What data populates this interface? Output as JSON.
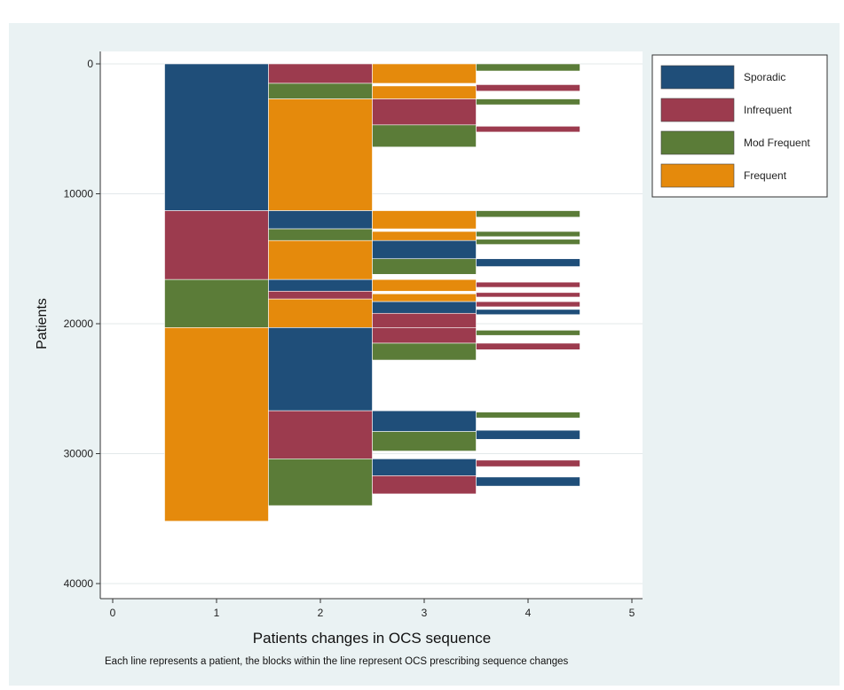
{
  "chart_data": {
    "type": "bar",
    "orientation": "horizontal-stacked-sequence",
    "title": "",
    "xlabel": "Patients changes in OCS sequence",
    "ylabel": "Patients",
    "xlim": [
      0,
      5
    ],
    "ylim": [
      0,
      40000
    ],
    "y_inverted": true,
    "xticks": [
      "0",
      "1",
      "2",
      "3",
      "4",
      "5"
    ],
    "yticks": [
      "0",
      "10000",
      "20000",
      "30000",
      "40000"
    ],
    "grid": true,
    "legend_position": "top-right",
    "colors": {
      "Sporadic": "#1f4e79",
      "Infrequent": "#9c3b4e",
      "Mod Frequent": "#5b7c38",
      "Frequent": "#e58a0c"
    },
    "legend": [
      "Sporadic",
      "Infrequent",
      "Mod Frequent",
      "Frequent"
    ],
    "blocks": [
      {
        "step": 1,
        "category": "Sporadic",
        "y0": 0,
        "y1": 11300
      },
      {
        "step": 1,
        "category": "Infrequent",
        "y0": 11300,
        "y1": 16600
      },
      {
        "step": 1,
        "category": "Mod Frequent",
        "y0": 16600,
        "y1": 20300
      },
      {
        "step": 1,
        "category": "Frequent",
        "y0": 20300,
        "y1": 35200
      },
      {
        "step": 2,
        "category": "Infrequent",
        "y0": 0,
        "y1": 1500
      },
      {
        "step": 2,
        "category": "Mod Frequent",
        "y0": 1500,
        "y1": 2700
      },
      {
        "step": 2,
        "category": "Frequent",
        "y0": 2700,
        "y1": 11300
      },
      {
        "step": 2,
        "category": "Sporadic",
        "y0": 11300,
        "y1": 12700
      },
      {
        "step": 2,
        "category": "Mod Frequent",
        "y0": 12700,
        "y1": 13600
      },
      {
        "step": 2,
        "category": "Frequent",
        "y0": 13600,
        "y1": 16600
      },
      {
        "step": 2,
        "category": "Sporadic",
        "y0": 16600,
        "y1": 17500
      },
      {
        "step": 2,
        "category": "Infrequent",
        "y0": 17500,
        "y1": 18100
      },
      {
        "step": 2,
        "category": "Frequent",
        "y0": 18100,
        "y1": 20300
      },
      {
        "step": 2,
        "category": "Sporadic",
        "y0": 20300,
        "y1": 26700
      },
      {
        "step": 2,
        "category": "Infrequent",
        "y0": 26700,
        "y1": 30400
      },
      {
        "step": 2,
        "category": "Mod Frequent",
        "y0": 30400,
        "y1": 34000
      },
      {
        "step": 3,
        "category": "Frequent",
        "y0": 0,
        "y1": 1500
      },
      {
        "step": 3,
        "category": "Frequent",
        "y0": 1700,
        "y1": 2700
      },
      {
        "step": 3,
        "category": "Infrequent",
        "y0": 2700,
        "y1": 4700
      },
      {
        "step": 3,
        "category": "Mod Frequent",
        "y0": 4700,
        "y1": 6400
      },
      {
        "step": 3,
        "category": "Frequent",
        "y0": 11300,
        "y1": 12700
      },
      {
        "step": 3,
        "category": "Frequent",
        "y0": 12900,
        "y1": 13600
      },
      {
        "step": 3,
        "category": "Sporadic",
        "y0": 13600,
        "y1": 15000
      },
      {
        "step": 3,
        "category": "Mod Frequent",
        "y0": 15000,
        "y1": 16200
      },
      {
        "step": 3,
        "category": "Frequent",
        "y0": 16600,
        "y1": 17500
      },
      {
        "step": 3,
        "category": "Frequent",
        "y0": 17700,
        "y1": 18300
      },
      {
        "step": 3,
        "category": "Sporadic",
        "y0": 18300,
        "y1": 19200
      },
      {
        "step": 3,
        "category": "Infrequent",
        "y0": 19200,
        "y1": 20300
      },
      {
        "step": 3,
        "category": "Infrequent",
        "y0": 20300,
        "y1": 21500
      },
      {
        "step": 3,
        "category": "Mod Frequent",
        "y0": 21500,
        "y1": 22800
      },
      {
        "step": 3,
        "category": "Sporadic",
        "y0": 26700,
        "y1": 28300
      },
      {
        "step": 3,
        "category": "Mod Frequent",
        "y0": 28300,
        "y1": 29800
      },
      {
        "step": 3,
        "category": "Sporadic",
        "y0": 30400,
        "y1": 31700
      },
      {
        "step": 3,
        "category": "Infrequent",
        "y0": 31700,
        "y1": 33100
      },
      {
        "step": 4,
        "category": "Mod Frequent",
        "y0": 0,
        "y1": 550
      },
      {
        "step": 4,
        "category": "Infrequent",
        "y0": 1600,
        "y1": 2100
      },
      {
        "step": 4,
        "category": "Mod Frequent",
        "y0": 2700,
        "y1": 3150
      },
      {
        "step": 4,
        "category": "Infrequent",
        "y0": 4800,
        "y1": 5250
      },
      {
        "step": 4,
        "category": "Mod Frequent",
        "y0": 11300,
        "y1": 11800
      },
      {
        "step": 4,
        "category": "Mod Frequent",
        "y0": 12900,
        "y1": 13300
      },
      {
        "step": 4,
        "category": "Mod Frequent",
        "y0": 13500,
        "y1": 13900
      },
      {
        "step": 4,
        "category": "Sporadic",
        "y0": 15000,
        "y1": 15600
      },
      {
        "step": 4,
        "category": "Infrequent",
        "y0": 16800,
        "y1": 17200
      },
      {
        "step": 4,
        "category": "Infrequent",
        "y0": 17600,
        "y1": 17950
      },
      {
        "step": 4,
        "category": "Infrequent",
        "y0": 18300,
        "y1": 18700
      },
      {
        "step": 4,
        "category": "Sporadic",
        "y0": 18900,
        "y1": 19300
      },
      {
        "step": 4,
        "category": "Mod Frequent",
        "y0": 20500,
        "y1": 20900
      },
      {
        "step": 4,
        "category": "Infrequent",
        "y0": 21500,
        "y1": 22000
      },
      {
        "step": 4,
        "category": "Mod Frequent",
        "y0": 26800,
        "y1": 27250
      },
      {
        "step": 4,
        "category": "Sporadic",
        "y0": 28200,
        "y1": 28900
      },
      {
        "step": 4,
        "category": "Infrequent",
        "y0": 30500,
        "y1": 31000
      },
      {
        "step": 4,
        "category": "Sporadic",
        "y0": 31800,
        "y1": 32500
      }
    ]
  },
  "caption": "Each line represents a patient, the blocks within the line represent OCS prescribing sequence changes"
}
